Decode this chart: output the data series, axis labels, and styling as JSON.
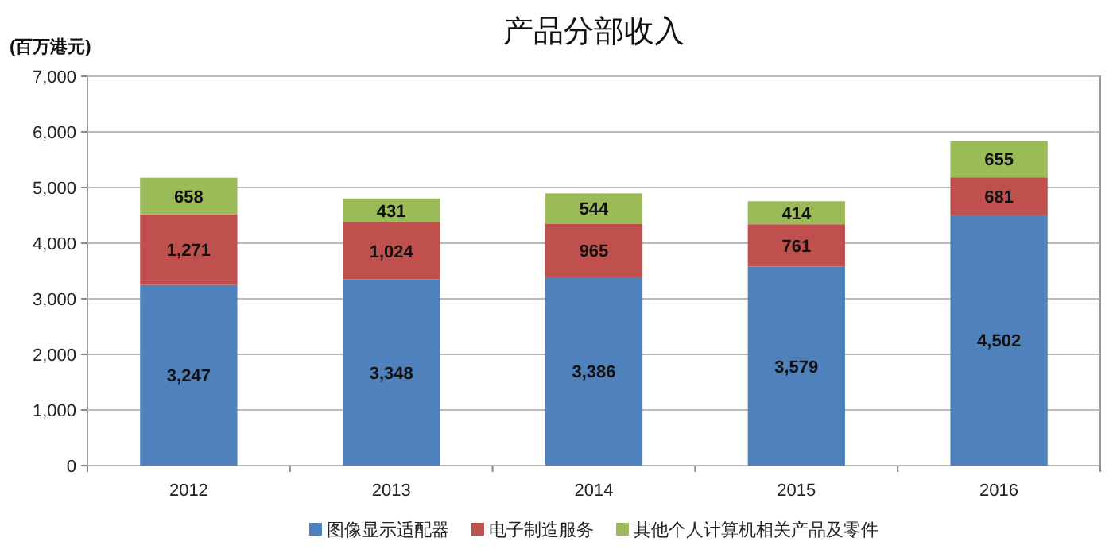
{
  "chart_data": {
    "type": "bar",
    "title": "产品分部收入",
    "ylabel": "(百万港元)",
    "stacked": true,
    "categories": [
      "2012",
      "2013",
      "2014",
      "2015",
      "2016"
    ],
    "series": [
      {
        "name": "图像显示适配器",
        "color": "#4f81bd",
        "values": [
          3247,
          3348,
          3386,
          3579,
          4502
        ],
        "value_labels": [
          "3,247",
          "3,348",
          "3,386",
          "3,579",
          "4,502"
        ]
      },
      {
        "name": "电子制造服务",
        "color": "#c0504d",
        "values": [
          1271,
          1024,
          965,
          761,
          681
        ],
        "value_labels": [
          "1,271",
          "1,024",
          "965",
          "761",
          "681"
        ]
      },
      {
        "name": "其他个人计算机相关产品及零件",
        "color": "#9bbb59",
        "values": [
          658,
          431,
          544,
          414,
          655
        ],
        "value_labels": [
          "658",
          "431",
          "544",
          "414",
          "655"
        ]
      }
    ],
    "ylim": [
      0,
      7000
    ],
    "yticks": [
      0,
      {
        "value": 1000,
        "label": "1,000"
      },
      {
        "value": 2000,
        "label": "2,000"
      },
      {
        "value": 3000,
        "label": "3,000"
      },
      {
        "value": 4000,
        "label": "4,000"
      },
      {
        "value": 5000,
        "label": "5,000"
      },
      {
        "value": 6000,
        "label": "6,000"
      },
      {
        "value": 7000,
        "label": "7,000"
      }
    ],
    "grid": "y",
    "legend": "bottom"
  }
}
